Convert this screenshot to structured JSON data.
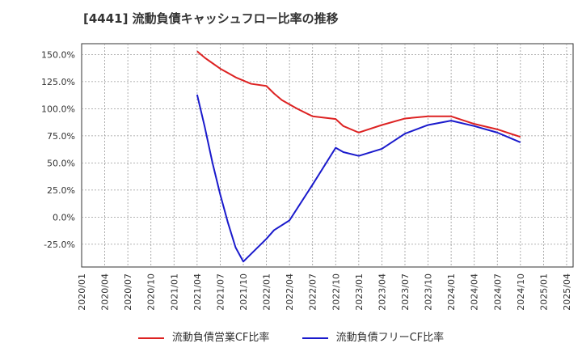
{
  "chart_data": {
    "type": "line",
    "title": "[4441]  流動負債キャッシュフロー比率の推移",
    "xlabel": "",
    "ylabel": "",
    "x_ticks": [
      "2020/01",
      "2020/04",
      "2020/07",
      "2020/10",
      "2021/01",
      "2021/04",
      "2021/07",
      "2021/10",
      "2022/01",
      "2022/04",
      "2022/07",
      "2022/10",
      "2023/01",
      "2023/04",
      "2023/07",
      "2023/10",
      "2024/01",
      "2024/04",
      "2024/07",
      "2024/10",
      "2025/01",
      "2025/04"
    ],
    "y_ticks": [
      -25,
      0,
      25,
      50,
      75,
      100,
      125,
      150
    ],
    "y_tick_labels": [
      "-25.0%",
      "0.0%",
      "25.0%",
      "50.0%",
      "75.0%",
      "100.0%",
      "125.0%",
      "150.0%"
    ],
    "ylim": [
      -46,
      160
    ],
    "grid": true,
    "series": [
      {
        "name": "流動負債営業CF比率",
        "color": "#dd2222",
        "points": [
          [
            "2021/04",
            153
          ],
          [
            "2021/05",
            147
          ],
          [
            "2021/06",
            142
          ],
          [
            "2021/07",
            137
          ],
          [
            "2021/08",
            133
          ],
          [
            "2021/09",
            129
          ],
          [
            "2021/10",
            126
          ],
          [
            "2021/11",
            123
          ],
          [
            "2022/01",
            121
          ],
          [
            "2022/02",
            114
          ],
          [
            "2022/03",
            108
          ],
          [
            "2022/05",
            100
          ],
          [
            "2022/07",
            93
          ],
          [
            "2022/10",
            90.5
          ],
          [
            "2022/11",
            84
          ],
          [
            "2023/01",
            78
          ],
          [
            "2023/04",
            85
          ],
          [
            "2023/07",
            91
          ],
          [
            "2023/10",
            93
          ],
          [
            "2024/01",
            93
          ],
          [
            "2024/04",
            86
          ],
          [
            "2024/07",
            81
          ],
          [
            "2024/10",
            74
          ]
        ]
      },
      {
        "name": "流動負債フリーCF比率",
        "color": "#1a1acc",
        "points": [
          [
            "2021/04",
            113
          ],
          [
            "2021/05",
            83
          ],
          [
            "2021/06",
            50
          ],
          [
            "2021/07",
            21
          ],
          [
            "2021/08",
            -5
          ],
          [
            "2021/09",
            -28
          ],
          [
            "2021/10",
            -41
          ],
          [
            "2021/11",
            -34
          ],
          [
            "2022/01",
            -20
          ],
          [
            "2022/02",
            -12
          ],
          [
            "2022/04",
            -3
          ],
          [
            "2022/07",
            30
          ],
          [
            "2022/10",
            64
          ],
          [
            "2022/11",
            60
          ],
          [
            "2023/01",
            56.5
          ],
          [
            "2023/04",
            63
          ],
          [
            "2023/07",
            77
          ],
          [
            "2023/10",
            85
          ],
          [
            "2024/01",
            89
          ],
          [
            "2024/04",
            84
          ],
          [
            "2024/07",
            78
          ],
          [
            "2024/10",
            69
          ]
        ]
      }
    ]
  }
}
